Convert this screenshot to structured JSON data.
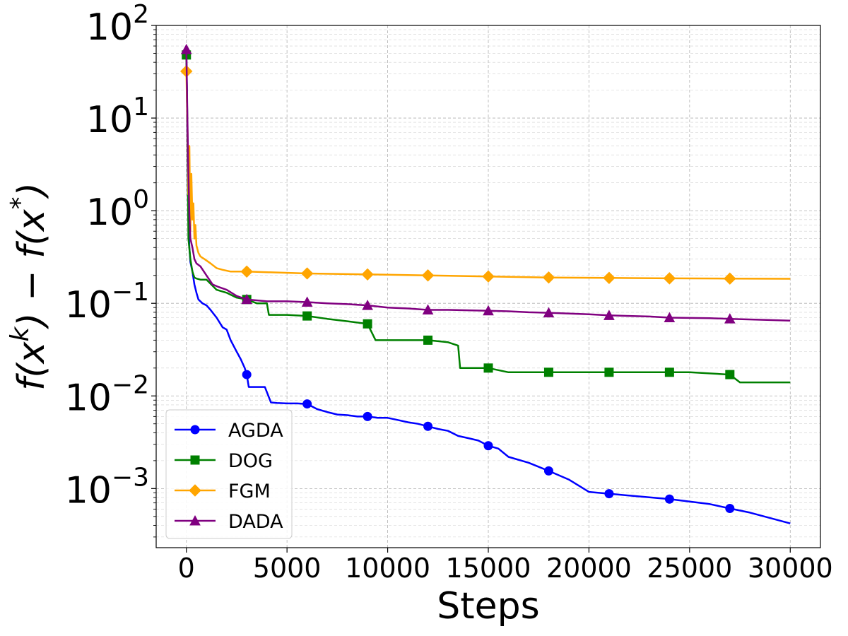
{
  "chart_data": {
    "type": "line",
    "title": "",
    "xlabel": "Steps",
    "ylabel": "f(x^k) − f(x^*)",
    "yscale": "log",
    "xlim": [
      -1500,
      31500
    ],
    "ylim": [
      0.00023,
      100
    ],
    "grid": true,
    "legend_position": "lower-left",
    "x_ticks": [
      0,
      5000,
      10000,
      15000,
      20000,
      25000,
      30000
    ],
    "x_tick_labels": [
      "0",
      "5000",
      "10000",
      "15000",
      "20000",
      "25000",
      "30000"
    ],
    "y_ticks": [
      0.001,
      0.01,
      0.1,
      1,
      10,
      100
    ],
    "y_tick_labels": [
      {
        "base": "10",
        "exp": "−3"
      },
      {
        "base": "10",
        "exp": "−2"
      },
      {
        "base": "10",
        "exp": "−1"
      },
      {
        "base": "10",
        "exp": "0"
      },
      {
        "base": "10",
        "exp": "1"
      },
      {
        "base": "10",
        "exp": "2"
      }
    ],
    "series": [
      {
        "name": "AGDA",
        "color": "#0000ff",
        "marker": "circle",
        "x": [
          0,
          30,
          60,
          100,
          150,
          200,
          300,
          400,
          500,
          600,
          800,
          1000,
          1200,
          1500,
          1800,
          2000,
          2200,
          2500,
          2700,
          2900,
          3000,
          3100,
          3500,
          3900,
          4200,
          4500,
          5000,
          5500,
          6000,
          6500,
          7000,
          7500,
          8000,
          8500,
          9000,
          9500,
          10000,
          10500,
          11000,
          11500,
          12000,
          12500,
          13000,
          13500,
          14000,
          14500,
          15000,
          15500,
          16000,
          17000,
          18000,
          19000,
          20000,
          21000,
          22000,
          24000,
          26000,
          27000,
          28000,
          29000,
          30000
        ],
        "y": [
          50,
          20,
          3,
          0.8,
          0.4,
          0.28,
          0.22,
          0.16,
          0.13,
          0.11,
          0.1,
          0.095,
          0.085,
          0.07,
          0.055,
          0.052,
          0.04,
          0.03,
          0.025,
          0.02,
          0.017,
          0.0125,
          0.0125,
          0.0125,
          0.0085,
          0.0084,
          0.0083,
          0.0083,
          0.0082,
          0.0072,
          0.0067,
          0.0063,
          0.0062,
          0.006,
          0.006,
          0.0058,
          0.0058,
          0.0055,
          0.0052,
          0.005,
          0.0047,
          0.0044,
          0.0042,
          0.0037,
          0.0035,
          0.0033,
          0.0029,
          0.0027,
          0.0022,
          0.0019,
          0.00155,
          0.00125,
          0.00092,
          0.00088,
          0.00084,
          0.00077,
          0.00068,
          0.00061,
          0.00055,
          0.00048,
          0.00042
        ],
        "marker_x": [
          0,
          3000,
          6000,
          9000,
          12000,
          15000,
          18000,
          21000,
          24000,
          27000
        ],
        "marker_y": [
          50,
          0.017,
          0.0082,
          0.006,
          0.0047,
          0.0029,
          0.00155,
          0.00088,
          0.00077,
          0.00061
        ]
      },
      {
        "name": "DOG",
        "color": "#008000",
        "marker": "square",
        "x": [
          0,
          50,
          100,
          200,
          300,
          400,
          500,
          700,
          1000,
          1500,
          2000,
          2500,
          3000,
          3500,
          4000,
          4100,
          5000,
          6000,
          7000,
          8000,
          9000,
          9400,
          10000,
          11000,
          12000,
          13000,
          13500,
          13600,
          14000,
          15000,
          16000,
          17000,
          18000,
          20000,
          21000,
          24000,
          25000,
          27000,
          27500,
          28000,
          30000
        ],
        "y": [
          48,
          8,
          0.5,
          0.3,
          0.22,
          0.19,
          0.185,
          0.18,
          0.18,
          0.14,
          0.13,
          0.115,
          0.11,
          0.1,
          0.1,
          0.075,
          0.075,
          0.073,
          0.068,
          0.064,
          0.06,
          0.04,
          0.04,
          0.04,
          0.04,
          0.038,
          0.035,
          0.02,
          0.02,
          0.02,
          0.018,
          0.018,
          0.018,
          0.018,
          0.018,
          0.018,
          0.018,
          0.017,
          0.014,
          0.014,
          0.014
        ],
        "marker_x": [
          0,
          3000,
          6000,
          9000,
          12000,
          15000,
          18000,
          21000,
          24000,
          27000
        ],
        "marker_y": [
          48,
          0.11,
          0.073,
          0.06,
          0.04,
          0.02,
          0.018,
          0.018,
          0.018,
          0.017
        ]
      },
      {
        "name": "FGM",
        "color": "#ffa500",
        "marker": "diamond",
        "x": [
          0,
          50,
          100,
          150,
          200,
          250,
          300,
          350,
          400,
          450,
          500,
          600,
          700,
          900,
          1200,
          1500,
          1800,
          2200,
          3000,
          6000,
          9000,
          12000,
          15000,
          18000,
          21000,
          24000,
          27000,
          30000
        ],
        "y": [
          32,
          8,
          1.5,
          5,
          0.6,
          2.5,
          0.8,
          1.2,
          0.5,
          0.7,
          0.42,
          0.35,
          0.32,
          0.3,
          0.27,
          0.24,
          0.23,
          0.22,
          0.22,
          0.21,
          0.205,
          0.2,
          0.195,
          0.19,
          0.188,
          0.186,
          0.185,
          0.184
        ],
        "marker_x": [
          0,
          3000,
          6000,
          9000,
          12000,
          15000,
          18000,
          21000,
          24000,
          27000
        ],
        "marker_y": [
          32,
          0.22,
          0.21,
          0.205,
          0.2,
          0.195,
          0.19,
          0.188,
          0.186,
          0.185
        ]
      },
      {
        "name": "DADA",
        "color": "#800080",
        "marker": "triangle",
        "x": [
          0,
          50,
          100,
          150,
          200,
          300,
          400,
          500,
          700,
          1000,
          1300,
          1600,
          2000,
          2500,
          3000,
          4000,
          5000,
          6000,
          7000,
          8000,
          9000,
          10000,
          11000,
          12000,
          13000,
          14000,
          15000,
          16000,
          17000,
          18000,
          20000,
          21000,
          22000,
          23000,
          24000,
          26000,
          27000,
          29000,
          30000
        ],
        "y": [
          55,
          10,
          2.5,
          0.9,
          0.5,
          0.4,
          0.3,
          0.27,
          0.25,
          0.2,
          0.16,
          0.15,
          0.14,
          0.12,
          0.11,
          0.105,
          0.105,
          0.103,
          0.1,
          0.098,
          0.095,
          0.09,
          0.088,
          0.085,
          0.085,
          0.084,
          0.083,
          0.082,
          0.08,
          0.079,
          0.076,
          0.074,
          0.073,
          0.072,
          0.07,
          0.069,
          0.068,
          0.066,
          0.065
        ],
        "marker_x": [
          0,
          3000,
          6000,
          9000,
          12000,
          15000,
          18000,
          21000,
          24000,
          27000
        ],
        "marker_y": [
          55,
          0.11,
          0.103,
          0.095,
          0.085,
          0.083,
          0.079,
          0.074,
          0.07,
          0.068
        ]
      }
    ]
  }
}
